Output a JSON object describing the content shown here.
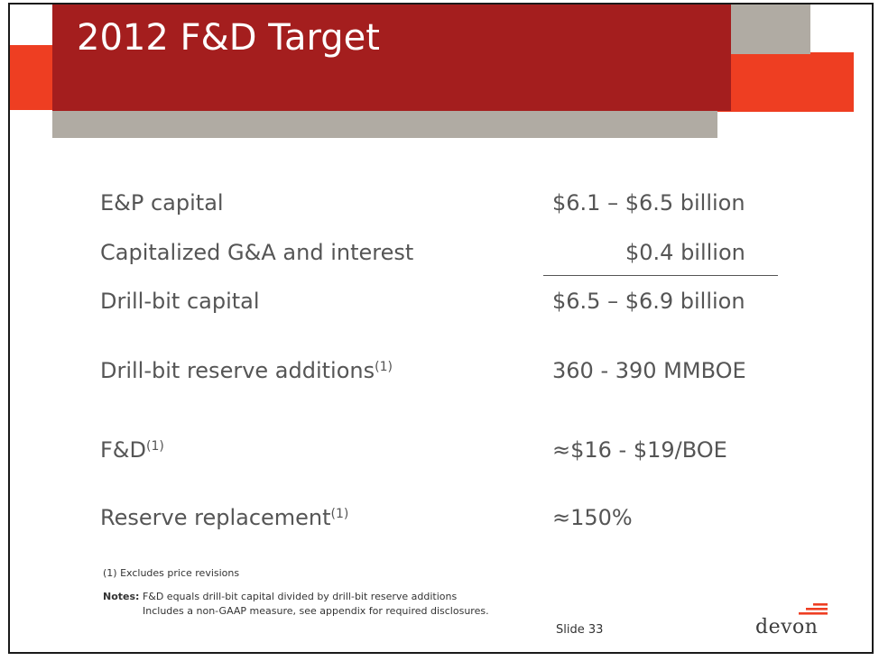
{
  "slide": {
    "title": "2012 F&D Target",
    "rows": [
      {
        "label": "E&P capital",
        "note": "",
        "value": "$6.1 – $6.5 billion"
      },
      {
        "label": "Capitalized G&A and interest",
        "note": "",
        "value": "$0.4 billion"
      },
      {
        "label": "Drill-bit capital",
        "note": "",
        "value": "$6.5 – $6.9 billion"
      },
      {
        "label": "Drill-bit reserve additions",
        "note": "(1)",
        "value": "360 - 390 MMBOE"
      },
      {
        "label": "F&D",
        "note": "(1)",
        "value": "≈$16 - $19/BOE"
      },
      {
        "label": "Reserve replacement",
        "note": "(1)",
        "value": "≈150%"
      }
    ],
    "footnote": "(1) Excludes price revisions",
    "notes_label": "Notes:",
    "notes_line1": "F&D equals drill-bit capital divided by drill-bit reserve additions",
    "notes_line2": "Includes a non-GAAP measure, see appendix for required disclosures.",
    "slide_number": "Slide 33",
    "logo_text": "devon",
    "colors": {
      "title_band": "#a41e1e",
      "accent_orange": "#ee3e22",
      "accent_gray": "#b0aba3",
      "body_text": "#555555"
    }
  }
}
